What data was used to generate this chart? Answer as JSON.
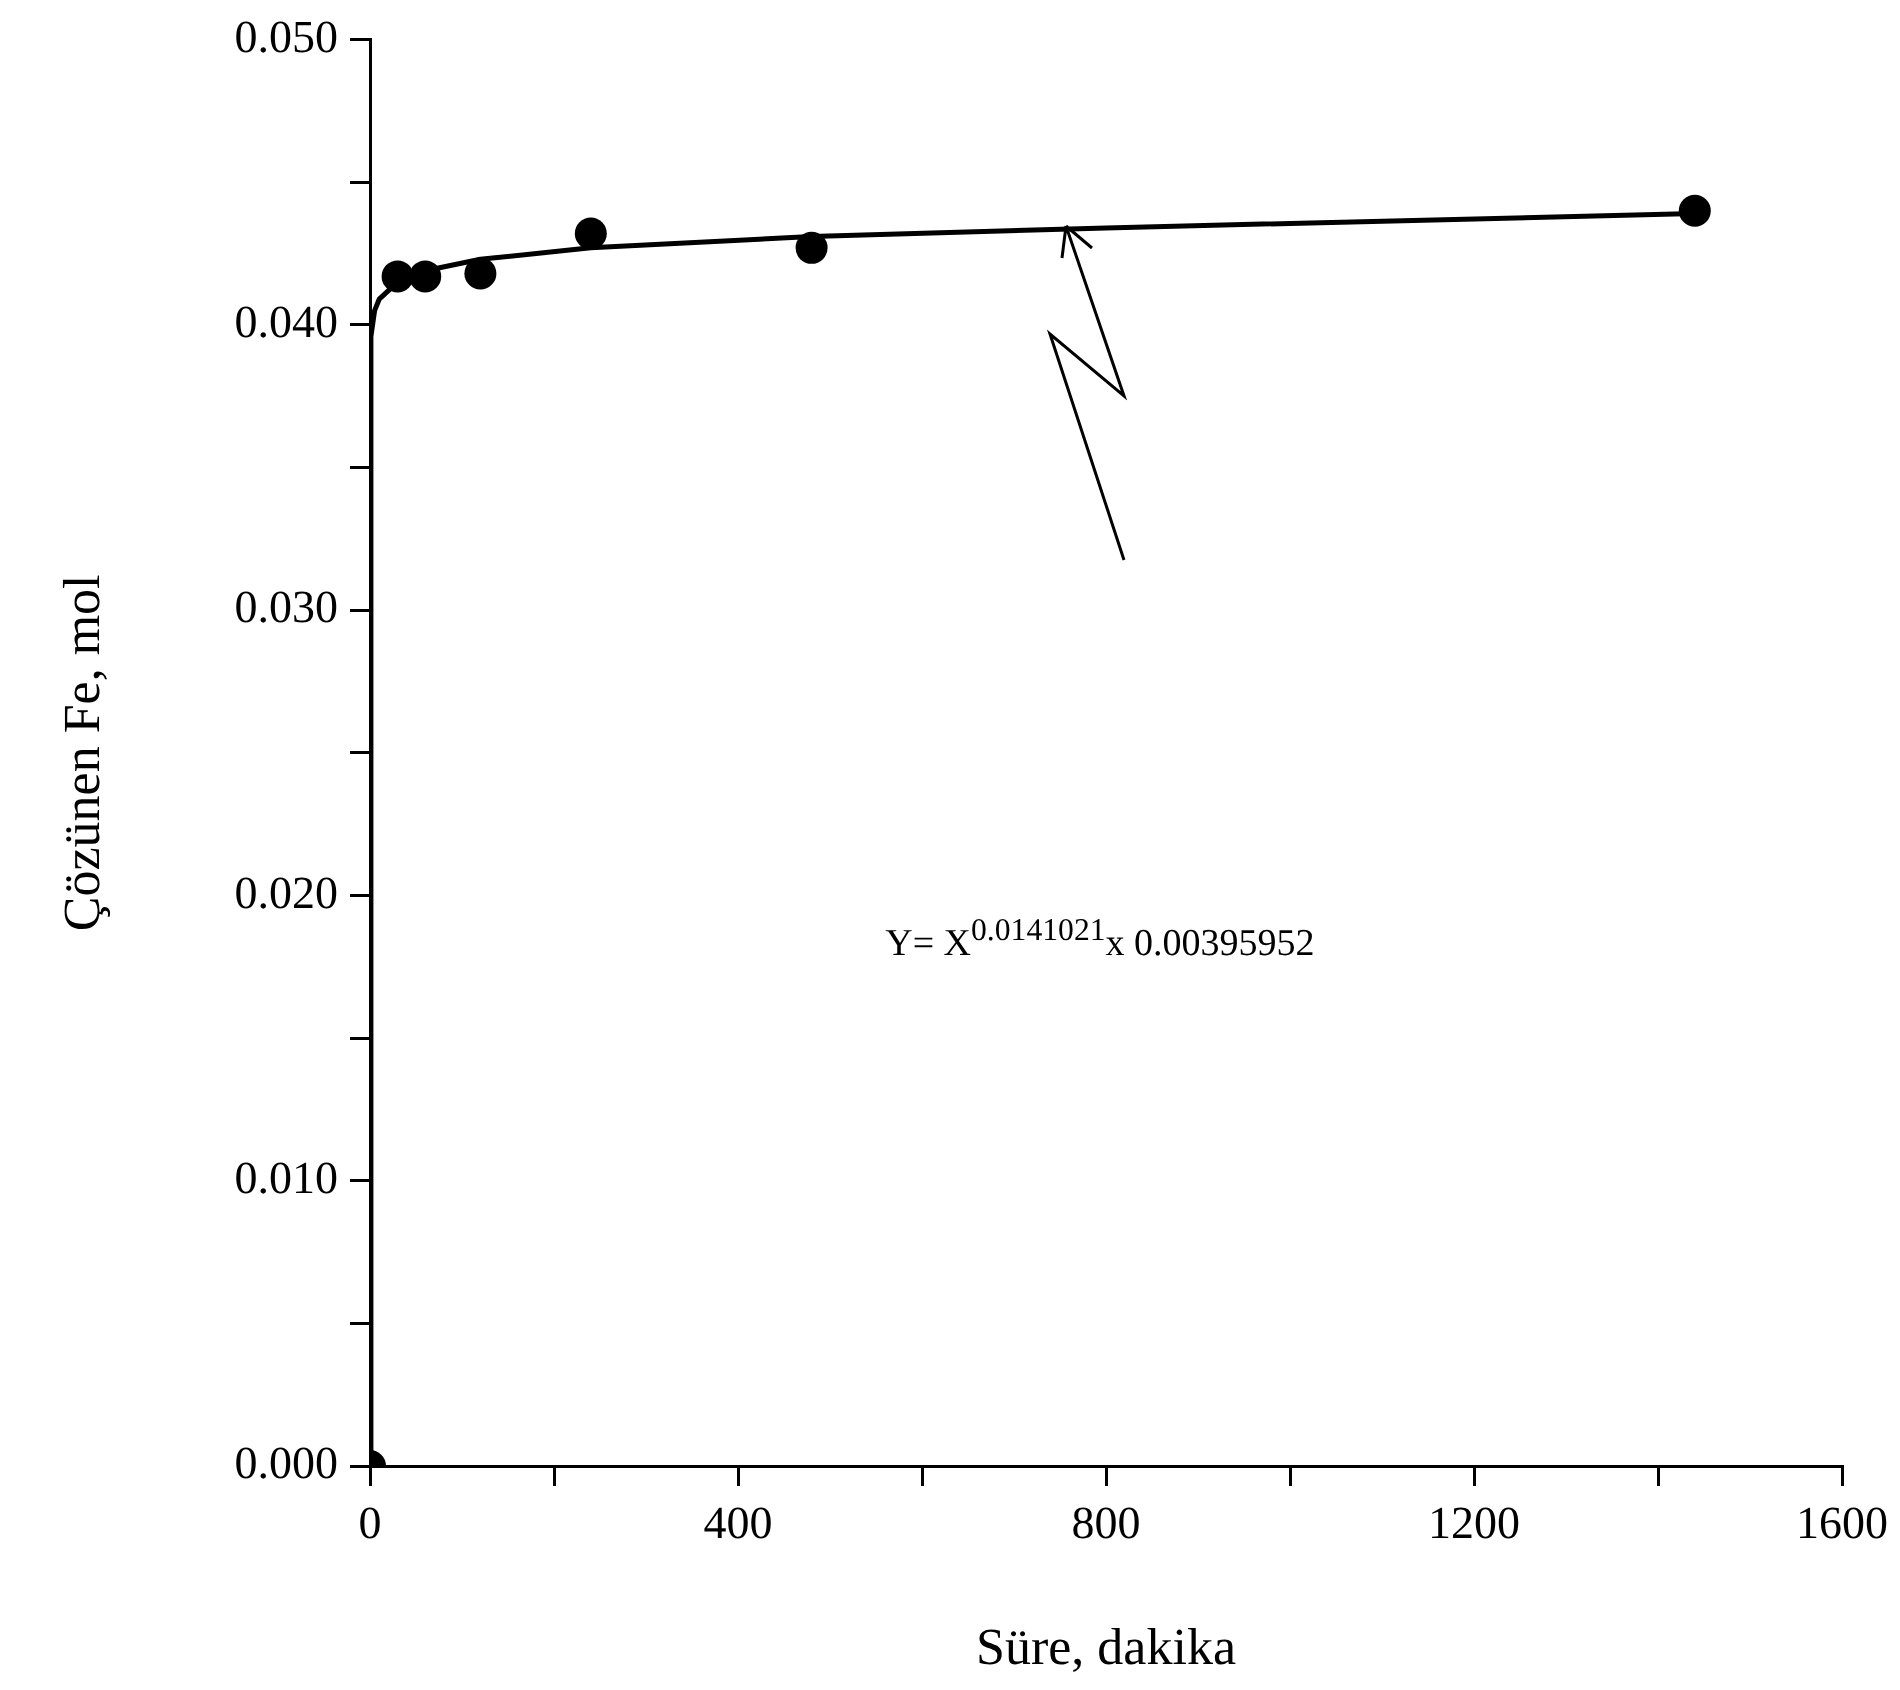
{
  "chart_data": {
    "type": "scatter",
    "xlabel": "Süre, dakika",
    "ylabel": "Çözünen Fe, mol",
    "xlim": [
      0,
      1600
    ],
    "xticks": [
      0,
      {
        "value": 200,
        "label": null
      },
      400,
      {
        "value": 600,
        "label": null
      },
      800,
      {
        "value": 1000,
        "label": null
      },
      1200,
      {
        "value": 1400,
        "label": null
      },
      1600
    ],
    "ylim": [
      0,
      0.05
    ],
    "yticks": [
      {
        "value": 0,
        "label": "0.000"
      },
      {
        "value": 0.005,
        "label": null
      },
      {
        "value": 0.01,
        "label": "0.010"
      },
      {
        "value": 0.015,
        "label": null
      },
      {
        "value": 0.02,
        "label": "0.020"
      },
      {
        "value": 0.025,
        "label": null
      },
      {
        "value": 0.03,
        "label": "0.030"
      },
      {
        "value": 0.035,
        "label": null
      },
      {
        "value": 0.04,
        "label": "0.040"
      },
      {
        "value": 0.045,
        "label": null
      },
      {
        "value": 0.05,
        "label": "0.050"
      }
    ],
    "grid": false,
    "legend": false,
    "series": [
      {
        "type": "scatter",
        "color": "#000000",
        "marker": "circle",
        "x": [
          0,
          30,
          60,
          120,
          240,
          480,
          1440
        ],
        "values": [
          0,
          0.0417,
          0.0417,
          0.0418,
          0.0432,
          0.0427,
          0.044
        ]
      },
      {
        "type": "line",
        "color": "#000000",
        "marker": "none",
        "line_style": "solid",
        "x": [
          0,
          1,
          5,
          10,
          30,
          60,
          120,
          240,
          480,
          800,
          1440
        ],
        "values": [
          0,
          0.0396,
          0.0405,
          0.0409,
          0.0415,
          0.0419,
          0.0423,
          0.0427,
          0.0431,
          0.0434,
          0.0439
        ]
      }
    ],
    "annotations": [
      "Y= X$^{0.0141021}$x 0.00395952"
    ]
  }
}
